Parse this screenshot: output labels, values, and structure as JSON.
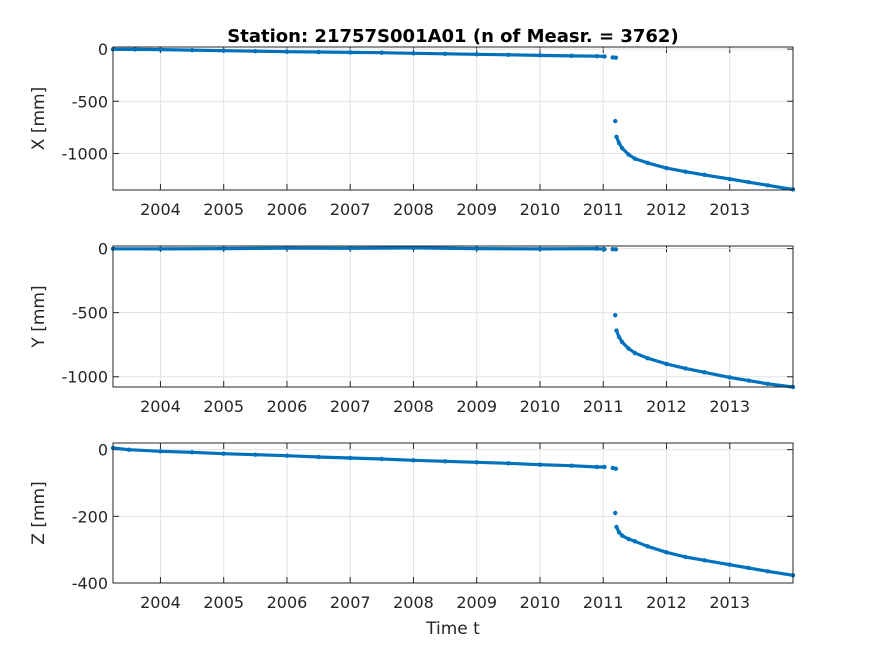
{
  "chart_data": {
    "type": "scatter",
    "title": "Station: 21757S001A01 (n of Measr. = 3762)",
    "xlabel": "Time t",
    "marker_color": "#0072BD",
    "xlim": [
      2003.25,
      2014.0
    ],
    "xticks": [
      2004,
      2005,
      2006,
      2007,
      2008,
      2009,
      2010,
      2011,
      2012,
      2013
    ],
    "xtick_labels": [
      "2004",
      "2005",
      "2006",
      "2007",
      "2008",
      "2009",
      "2010",
      "2011",
      "2012",
      "2013"
    ],
    "grid": true,
    "panels": [
      {
        "ylabel": "X [mm]",
        "ylim": [
          -1350,
          20
        ],
        "yticks": [
          0,
          -500,
          -1000
        ],
        "ytick_labels": [
          "0",
          "-500",
          "-1000"
        ],
        "series": [
          {
            "x": [
              2003.25,
              2003.6,
              2004.0,
              2004.5,
              2005.0,
              2005.5,
              2006.0,
              2006.5,
              2007.0,
              2007.5,
              2008.0,
              2008.5,
              2009.0,
              2009.5,
              2010.0,
              2010.5,
              2010.9,
              2011.02
            ],
            "y": [
              -2,
              -3,
              -5,
              -10,
              -15,
              -20,
              -25,
              -28,
              -32,
              -35,
              -40,
              -45,
              -50,
              -55,
              -60,
              -65,
              -68,
              -70
            ]
          },
          {
            "x": [
              2011.15,
              2011.2
            ],
            "y": [
              -80,
              -82
            ]
          },
          {
            "x": [
              2011.19
            ],
            "y": [
              -690
            ]
          },
          {
            "x": [
              2011.21,
              2011.25,
              2011.3,
              2011.4,
              2011.5,
              2011.7,
              2012.0,
              2012.3,
              2012.6,
              2013.0,
              2013.3,
              2013.6,
              2014.0
            ],
            "y": [
              -840,
              -900,
              -950,
              -1010,
              -1050,
              -1090,
              -1140,
              -1175,
              -1205,
              -1245,
              -1275,
              -1305,
              -1345
            ]
          }
        ]
      },
      {
        "ylabel": "Y [mm]",
        "ylim": [
          -1080,
          20
        ],
        "yticks": [
          0,
          -500,
          -1000
        ],
        "ytick_labels": [
          "0",
          "-500",
          "-1000"
        ],
        "series": [
          {
            "x": [
              2003.25,
              2004.0,
              2005.0,
              2006.0,
              2007.0,
              2008.0,
              2009.0,
              2010.0,
              2010.9,
              2011.02
            ],
            "y": [
              -2,
              -3,
              0,
              3,
              2,
              5,
              0,
              -3,
              0,
              -5
            ]
          },
          {
            "x": [
              2011.15,
              2011.2
            ],
            "y": [
              -5,
              -6
            ]
          },
          {
            "x": [
              2011.19
            ],
            "y": [
              -520
            ]
          },
          {
            "x": [
              2011.21,
              2011.25,
              2011.3,
              2011.4,
              2011.5,
              2011.7,
              2012.0,
              2012.3,
              2012.6,
              2013.0,
              2013.3,
              2013.6,
              2014.0
            ],
            "y": [
              -640,
              -690,
              -730,
              -780,
              -815,
              -855,
              -900,
              -935,
              -965,
              -1005,
              -1030,
              -1055,
              -1080
            ]
          }
        ]
      },
      {
        "ylabel": "Z [mm]",
        "ylim": [
          -400,
          20
        ],
        "yticks": [
          0,
          -200,
          -400
        ],
        "ytick_labels": [
          "0",
          "-200",
          "-400"
        ],
        "series": [
          {
            "x": [
              2003.25,
              2003.5,
              2004.0,
              2004.5,
              2005.0,
              2005.5,
              2006.0,
              2006.5,
              2007.0,
              2007.5,
              2008.0,
              2008.5,
              2009.0,
              2009.5,
              2010.0,
              2010.5,
              2010.9,
              2011.02
            ],
            "y": [
              5,
              0,
              -5,
              -8,
              -12,
              -15,
              -18,
              -22,
              -25,
              -28,
              -32,
              -35,
              -38,
              -41,
              -45,
              -48,
              -52,
              -52
            ]
          },
          {
            "x": [
              2011.15,
              2011.2
            ],
            "y": [
              -55,
              -57
            ]
          },
          {
            "x": [
              2011.19
            ],
            "y": [
              -190
            ]
          },
          {
            "x": [
              2011.21,
              2011.25,
              2011.3,
              2011.4,
              2011.5,
              2011.7,
              2012.0,
              2012.3,
              2012.6,
              2013.0,
              2013.3,
              2013.6,
              2014.0
            ],
            "y": [
              -232,
              -248,
              -258,
              -268,
              -275,
              -290,
              -308,
              -322,
              -332,
              -345,
              -355,
              -365,
              -377
            ]
          }
        ]
      }
    ]
  }
}
